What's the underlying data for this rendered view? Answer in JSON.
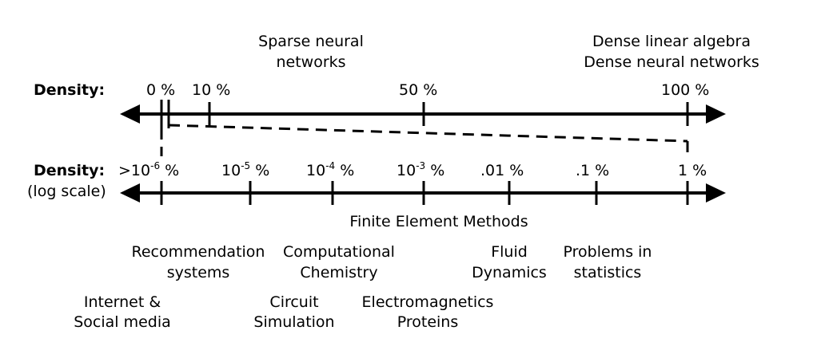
{
  "colors": {
    "ink": "#000000",
    "background": "#ffffff"
  },
  "top_axis": {
    "label": "Density:",
    "scale": "linear",
    "ticks": [
      {
        "value": "0",
        "text": "0 %"
      },
      {
        "value": "10",
        "text": "10 %"
      },
      {
        "value": "50",
        "text": "50 %"
      },
      {
        "value": "100",
        "text": "100 %"
      }
    ],
    "annotations": {
      "sparse": [
        "Sparse neural",
        "networks"
      ],
      "dense": [
        "Dense linear algebra",
        "Dense neural networks"
      ]
    }
  },
  "bottom_axis": {
    "label": "Density:",
    "sublabel": "(log scale)",
    "scale": "log",
    "ticks": [
      {
        "value": "1e-6",
        "prefix": ">10",
        "sup": "-6",
        "suffix": " %"
      },
      {
        "value": "1e-5",
        "prefix": "10",
        "sup": "-5",
        "suffix": " %"
      },
      {
        "value": "1e-4",
        "prefix": "10",
        "sup": "-4",
        "suffix": " %"
      },
      {
        "value": "1e-3",
        "prefix": "10",
        "sup": "-3",
        "suffix": " %"
      },
      {
        "value": "0.01",
        "prefix": ".01",
        "sup": "",
        "suffix": " %"
      },
      {
        "value": "0.1",
        "prefix": ".1",
        "sup": "",
        "suffix": " %"
      },
      {
        "value": "1",
        "prefix": "1",
        "sup": "",
        "suffix": " %"
      }
    ],
    "applications": {
      "finite_element": [
        "Finite Element Methods"
      ],
      "recommendation": [
        "Recommendation",
        "systems"
      ],
      "chemistry": [
        "Computational",
        "Chemistry"
      ],
      "fluid": [
        "Fluid",
        "Dynamics"
      ],
      "statistics": [
        "Problems  in",
        "statistics"
      ],
      "internet": [
        "Internet &",
        "Social media"
      ],
      "circuit": [
        "Circuit",
        "Simulation"
      ],
      "em_proteins": [
        "Electromagnetics",
        "Proteins"
      ]
    }
  }
}
